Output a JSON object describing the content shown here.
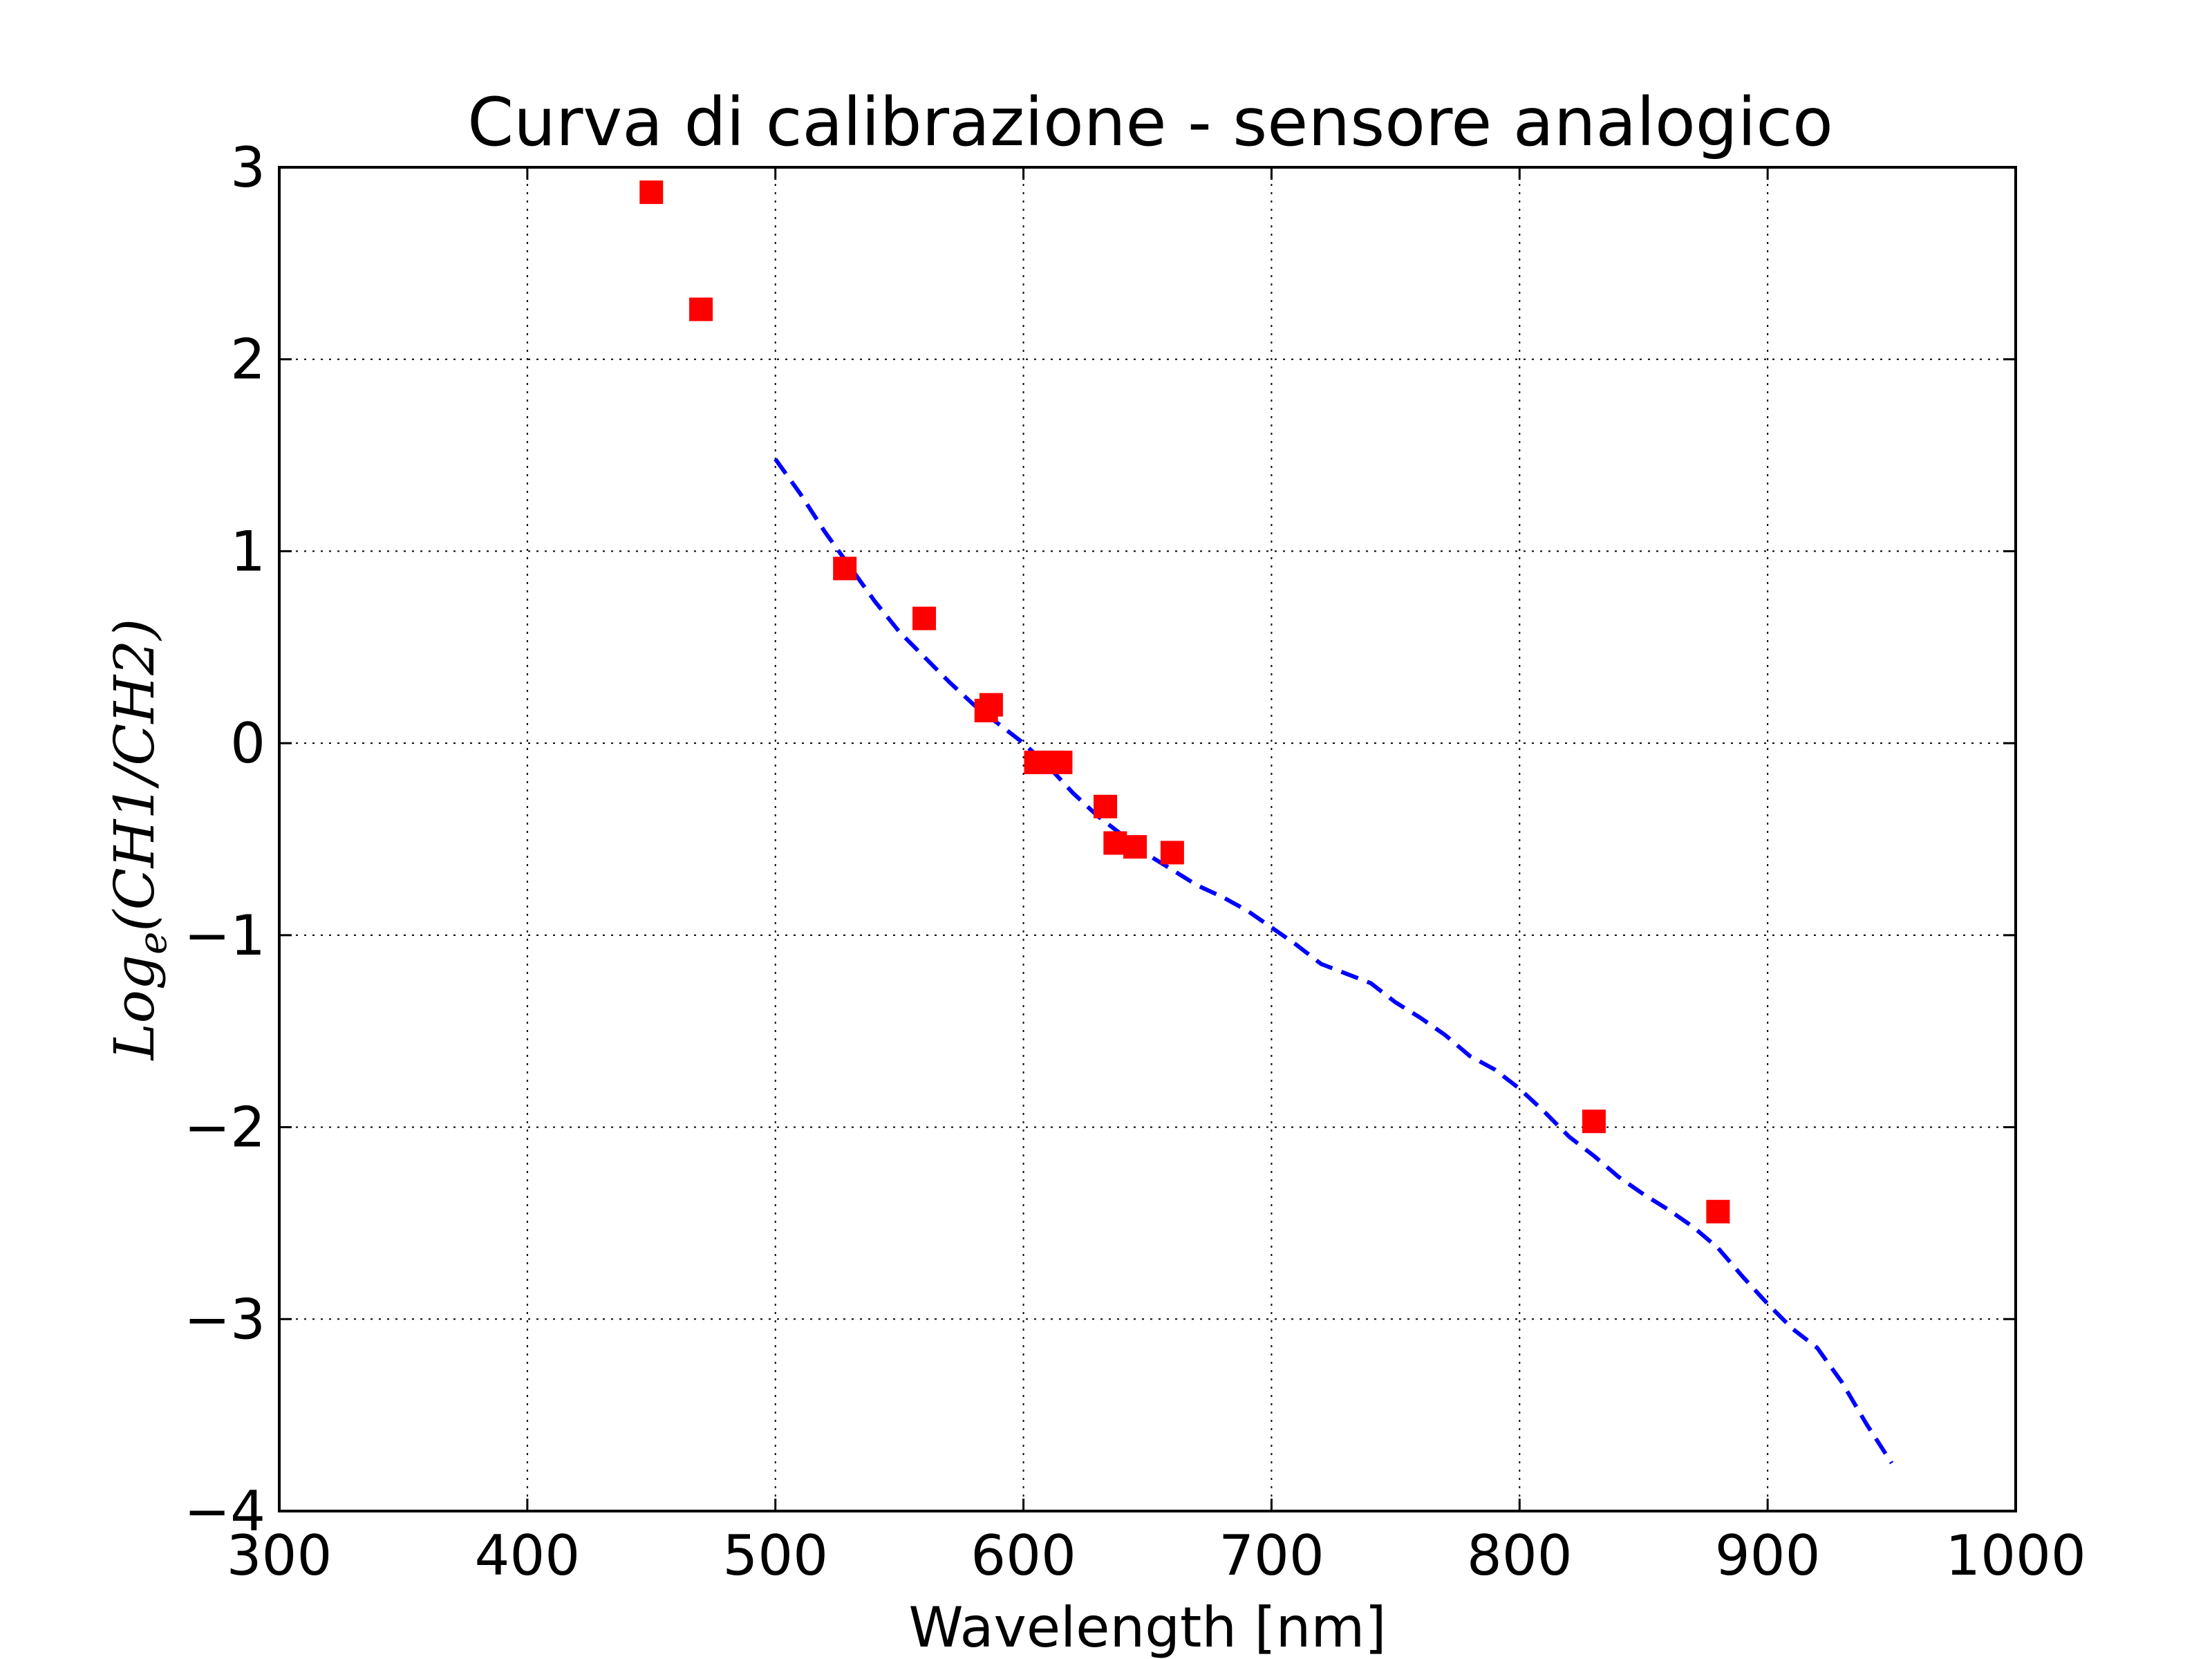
{
  "chart_data": {
    "type": "scatter",
    "title": "Curva di calibrazione - sensore analogico",
    "xlabel": "Wavelength [nm]",
    "ylabel": {
      "main": "Log",
      "subscript": "e",
      "rest": "(CH1/CH2)"
    },
    "xlim": [
      300,
      1000
    ],
    "ylim": [
      -4,
      3
    ],
    "xticks": [
      300,
      400,
      500,
      600,
      700,
      800,
      900,
      1000
    ],
    "yticks": [
      3,
      2,
      1,
      0,
      -1,
      -2,
      -3,
      -4
    ],
    "xtick_labels": [
      "300",
      "400",
      "500",
      "600",
      "700",
      "800",
      "900",
      "1000"
    ],
    "ytick_labels": [
      "3",
      "2",
      "1",
      "0",
      "−1",
      "−2",
      "−3",
      "−4"
    ],
    "grid": true,
    "series": [
      {
        "kind": "markers",
        "marker": "square",
        "color": "#ff0000",
        "x": [
          450,
          470,
          528,
          560,
          585,
          587,
          605,
          610,
          615,
          633,
          637,
          645,
          660,
          830,
          880
        ],
        "y": [
          2.87,
          2.26,
          0.91,
          0.65,
          0.17,
          0.2,
          -0.1,
          -0.1,
          -0.1,
          -0.33,
          -0.52,
          -0.54,
          -0.57,
          -1.97,
          -2.44
        ]
      },
      {
        "kind": "dashed-line",
        "color": "#0000ff",
        "x": [
          500,
          510,
          520,
          530,
          540,
          550,
          560,
          570,
          580,
          590,
          600,
          610,
          620,
          630,
          640,
          650,
          660,
          670,
          680,
          690,
          700,
          710,
          720,
          730,
          740,
          750,
          760,
          770,
          780,
          790,
          800,
          810,
          820,
          830,
          840,
          850,
          860,
          870,
          880,
          890,
          900,
          910,
          920,
          930,
          940,
          950
        ],
        "y": [
          1.48,
          1.3,
          1.1,
          0.92,
          0.74,
          0.58,
          0.45,
          0.32,
          0.2,
          0.1,
          0.0,
          -0.12,
          -0.26,
          -0.38,
          -0.48,
          -0.58,
          -0.66,
          -0.74,
          -0.8,
          -0.87,
          -0.96,
          -1.05,
          -1.15,
          -1.2,
          -1.25,
          -1.35,
          -1.43,
          -1.52,
          -1.63,
          -1.7,
          -1.8,
          -1.92,
          -2.05,
          -2.15,
          -2.26,
          -2.35,
          -2.43,
          -2.52,
          -2.63,
          -2.78,
          -2.92,
          -3.05,
          -3.15,
          -3.33,
          -3.55,
          -3.75
        ]
      }
    ]
  }
}
